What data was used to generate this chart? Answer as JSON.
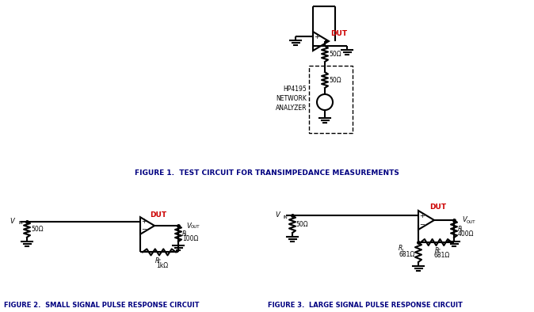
{
  "fig1_caption": "FIGURE 1.  TEST CIRCUIT FOR TRANSIMPEDANCE MEASUREMENTS",
  "fig2_caption": "FIGURE 2.  SMALL SIGNAL PULSE RESPONSE CIRCUIT",
  "fig3_caption": "FIGURE 3.  LARGE SIGNAL PULSE RESPONSE CIRCUIT",
  "background_color": "#ffffff",
  "line_color": "#000000",
  "label_color_dut": "#cc0000",
  "caption_color": "#000080"
}
